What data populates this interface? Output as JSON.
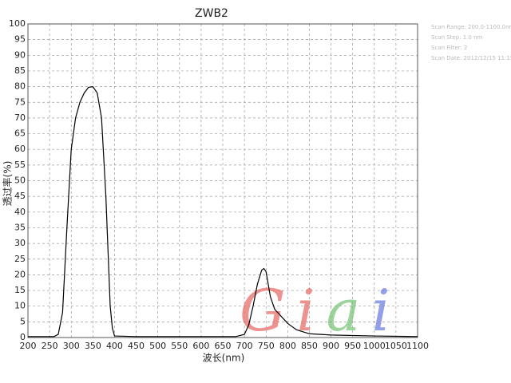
{
  "chart_data": {
    "type": "line",
    "title": "ZWB2",
    "x_label": "波长(nm)",
    "y_label": "透过率(%)",
    "scan_info": [
      "Scan Range: 200.0-1100.0nm",
      "Scan Step: 1.0 nm",
      "Scan Filter: 2",
      "Scan Date: 2012/12/15 11:15"
    ],
    "watermark": [
      "G",
      "i",
      "a",
      "i"
    ],
    "watermark_colors": [
      "#e8706a",
      "#e8706a",
      "#7cc47a",
      "#6f7fe0"
    ],
    "x": [
      200,
      260,
      270,
      280,
      290,
      300,
      310,
      320,
      330,
      340,
      350,
      360,
      370,
      380,
      390,
      395,
      400,
      450,
      500,
      600,
      680,
      700,
      710,
      720,
      730,
      740,
      745,
      750,
      760,
      770,
      780,
      790,
      800,
      820,
      850,
      900,
      1000,
      1100
    ],
    "series": [
      {
        "name": "ZWB2",
        "color": "#000000",
        "values": [
          0.3,
          0.3,
          1,
          8,
          35,
          60,
          70,
          75,
          78,
          79.8,
          80,
          78,
          70,
          45,
          10,
          3,
          0.5,
          0.3,
          0.3,
          0.3,
          0.3,
          1,
          4,
          10,
          17,
          21.5,
          22,
          21,
          13,
          9,
          7.5,
          6,
          4.5,
          2.5,
          1.2,
          0.8,
          0.5,
          0.3
        ]
      }
    ],
    "xlim": [
      200,
      1100
    ],
    "xticks": [
      200,
      250,
      300,
      350,
      400,
      450,
      500,
      550,
      600,
      650,
      700,
      750,
      800,
      850,
      900,
      950,
      1000,
      1050,
      1100
    ],
    "ylim": [
      0,
      100
    ],
    "yticks": [
      0,
      5,
      10,
      15,
      20,
      25,
      30,
      35,
      40,
      45,
      50,
      55,
      60,
      65,
      70,
      75,
      80,
      85,
      90,
      95,
      100
    ],
    "grid": true
  }
}
